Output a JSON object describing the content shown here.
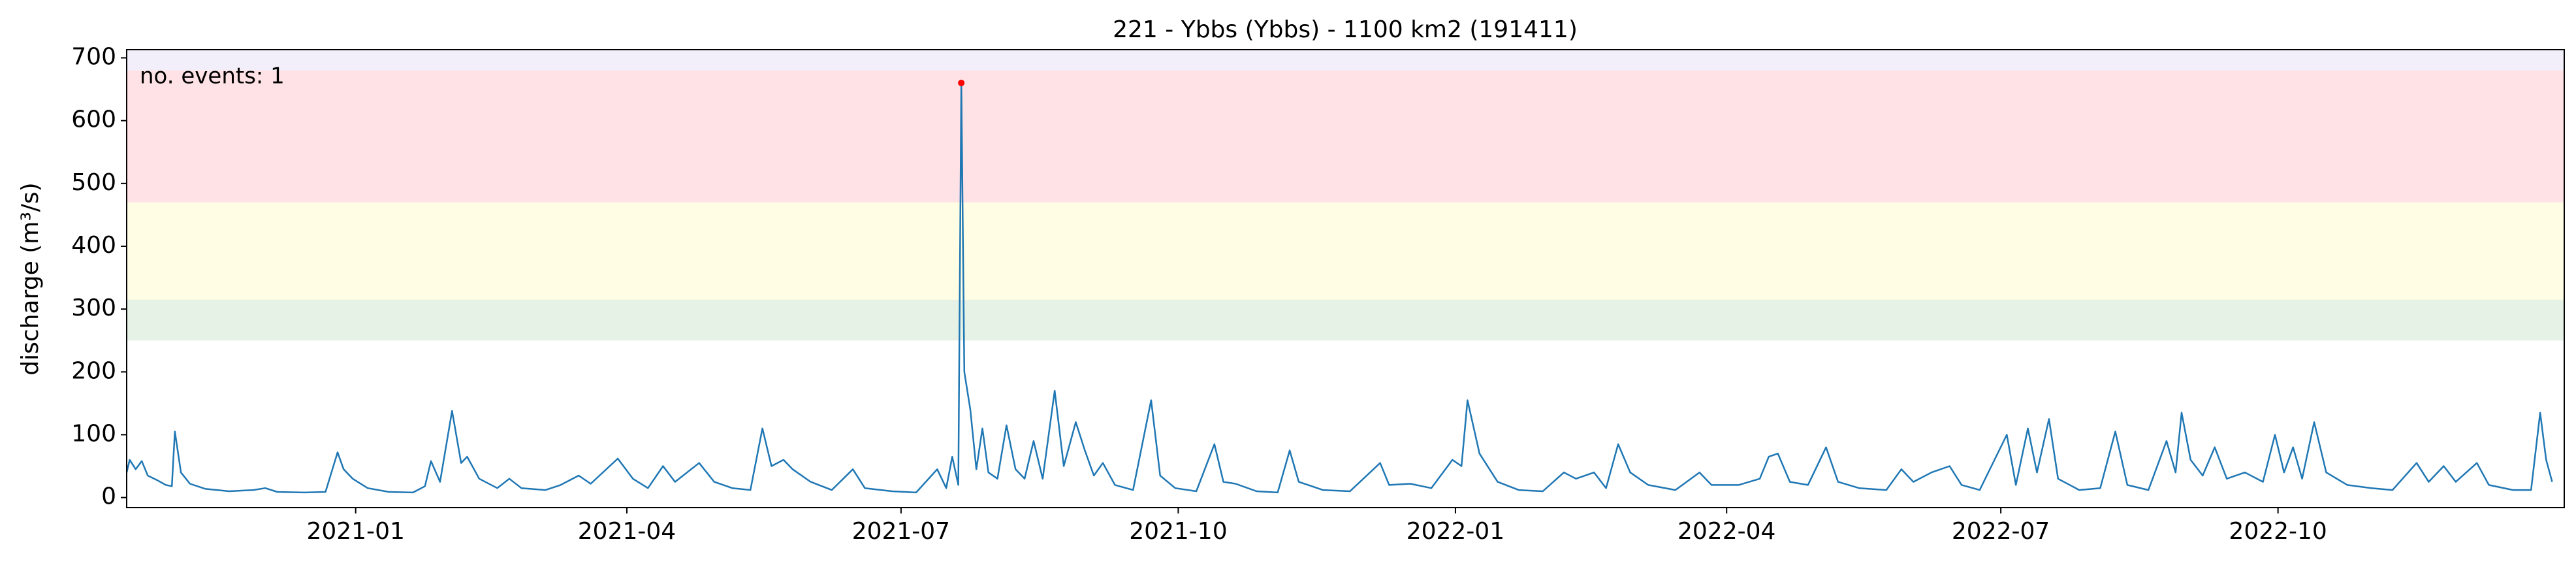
{
  "chart_data": {
    "type": "line",
    "title": "221 - Ybbs (Ybbs) - 1100 km2 (191411)",
    "y_label": "discharge (m³/s)",
    "annotation": "no. events: 1",
    "annotation_color": "#ff0000",
    "xlim": [
      "2020-10-17",
      "2023-01-04"
    ],
    "ylim": [
      -16,
      713
    ],
    "xticks": [
      {
        "value": "2021-01-01",
        "label": "2021-01"
      },
      {
        "value": "2021-04-01",
        "label": "2021-04"
      },
      {
        "value": "2021-07-01",
        "label": "2021-07"
      },
      {
        "value": "2021-10-01",
        "label": "2021-10"
      },
      {
        "value": "2022-01-01",
        "label": "2022-01"
      },
      {
        "value": "2022-04-01",
        "label": "2022-04"
      },
      {
        "value": "2022-07-01",
        "label": "2022-07"
      },
      {
        "value": "2022-10-01",
        "label": "2022-10"
      }
    ],
    "yticks": [
      0,
      100,
      200,
      300,
      400,
      500,
      600,
      700
    ],
    "bands": [
      {
        "from": 250,
        "to": 315,
        "color": "#e6f2e6"
      },
      {
        "from": 315,
        "to": 470,
        "color": "#fffde3"
      },
      {
        "from": 470,
        "to": 680,
        "color": "#ffe2e5"
      },
      {
        "from": 680,
        "to": 713,
        "color": "#f3effa"
      }
    ],
    "events": [
      {
        "x": "2021-07-21",
        "value": 660,
        "color": "#ff0000"
      }
    ],
    "series": [
      {
        "color": "#1f77b4",
        "x": [
          "2020-10-17",
          "2020-10-18",
          "2020-10-20",
          "2020-10-22",
          "2020-10-24",
          "2020-10-27",
          "2020-10-30",
          "2020-11-01",
          "2020-11-02",
          "2020-11-04",
          "2020-11-07",
          "2020-11-12",
          "2020-11-20",
          "2020-11-28",
          "2020-12-02",
          "2020-12-06",
          "2020-12-15",
          "2020-12-22",
          "2020-12-26",
          "2020-12-28",
          "2020-12-31",
          "2021-01-05",
          "2021-01-12",
          "2021-01-20",
          "2021-01-24",
          "2021-01-26",
          "2021-01-29",
          "2021-02-02",
          "2021-02-05",
          "2021-02-07",
          "2021-02-11",
          "2021-02-17",
          "2021-02-21",
          "2021-02-25",
          "2021-03-05",
          "2021-03-10",
          "2021-03-16",
          "2021-03-20",
          "2021-03-29",
          "2021-04-03",
          "2021-04-08",
          "2021-04-13",
          "2021-04-17",
          "2021-04-25",
          "2021-04-30",
          "2021-05-06",
          "2021-05-12",
          "2021-05-16",
          "2021-05-19",
          "2021-05-23",
          "2021-05-26",
          "2021-06-01",
          "2021-06-08",
          "2021-06-15",
          "2021-06-19",
          "2021-06-28",
          "2021-07-06",
          "2021-07-13",
          "2021-07-16",
          "2021-07-18",
          "2021-07-20",
          "2021-07-21",
          "2021-07-22",
          "2021-07-24",
          "2021-07-26",
          "2021-07-28",
          "2021-07-30",
          "2021-08-02",
          "2021-08-05",
          "2021-08-08",
          "2021-08-11",
          "2021-08-14",
          "2021-08-17",
          "2021-08-21",
          "2021-08-24",
          "2021-08-28",
          "2021-08-31",
          "2021-09-03",
          "2021-09-06",
          "2021-09-10",
          "2021-09-16",
          "2021-09-22",
          "2021-09-25",
          "2021-09-30",
          "2021-10-07",
          "2021-10-13",
          "2021-10-16",
          "2021-10-20",
          "2021-10-27",
          "2021-11-03",
          "2021-11-07",
          "2021-11-10",
          "2021-11-18",
          "2021-11-27",
          "2021-12-07",
          "2021-12-10",
          "2021-12-17",
          "2021-12-24",
          "2021-12-31",
          "2022-01-03",
          "2022-01-05",
          "2022-01-09",
          "2022-01-15",
          "2022-01-22",
          "2022-01-30",
          "2022-02-06",
          "2022-02-10",
          "2022-02-16",
          "2022-02-20",
          "2022-02-24",
          "2022-02-28",
          "2022-03-06",
          "2022-03-15",
          "2022-03-23",
          "2022-03-27",
          "2022-04-05",
          "2022-04-12",
          "2022-04-15",
          "2022-04-18",
          "2022-04-22",
          "2022-04-28",
          "2022-05-04",
          "2022-05-08",
          "2022-05-15",
          "2022-05-24",
          "2022-05-29",
          "2022-06-02",
          "2022-06-08",
          "2022-06-14",
          "2022-06-18",
          "2022-06-24",
          "2022-07-03",
          "2022-07-06",
          "2022-07-10",
          "2022-07-13",
          "2022-07-17",
          "2022-07-20",
          "2022-07-27",
          "2022-08-03",
          "2022-08-08",
          "2022-08-12",
          "2022-08-19",
          "2022-08-25",
          "2022-08-28",
          "2022-08-30",
          "2022-09-02",
          "2022-09-06",
          "2022-09-10",
          "2022-09-14",
          "2022-09-20",
          "2022-09-26",
          "2022-09-30",
          "2022-10-03",
          "2022-10-06",
          "2022-10-09",
          "2022-10-13",
          "2022-10-17",
          "2022-10-24",
          "2022-11-01",
          "2022-11-08",
          "2022-11-16",
          "2022-11-20",
          "2022-11-25",
          "2022-11-29",
          "2022-12-06",
          "2022-12-10",
          "2022-12-18",
          "2022-12-24",
          "2022-12-27",
          "2022-12-29",
          "2022-12-31"
        ],
        "values": [
          40,
          60,
          45,
          58,
          35,
          28,
          20,
          18,
          105,
          40,
          22,
          14,
          10,
          12,
          15,
          9,
          8,
          9,
          72,
          45,
          30,
          15,
          9,
          8,
          18,
          58,
          25,
          138,
          55,
          65,
          30,
          15,
          30,
          15,
          12,
          20,
          35,
          22,
          62,
          30,
          15,
          50,
          25,
          55,
          25,
          15,
          12,
          110,
          50,
          60,
          45,
          25,
          12,
          45,
          15,
          10,
          8,
          45,
          15,
          65,
          20,
          660,
          200,
          140,
          45,
          110,
          40,
          30,
          115,
          45,
          30,
          90,
          30,
          170,
          50,
          120,
          75,
          35,
          55,
          20,
          12,
          155,
          35,
          15,
          10,
          85,
          25,
          22,
          10,
          8,
          75,
          25,
          12,
          10,
          55,
          20,
          22,
          15,
          60,
          50,
          155,
          70,
          25,
          12,
          10,
          40,
          30,
          40,
          15,
          85,
          40,
          20,
          12,
          40,
          20,
          20,
          30,
          65,
          70,
          25,
          20,
          80,
          25,
          15,
          12,
          45,
          25,
          40,
          50,
          20,
          12,
          100,
          20,
          110,
          40,
          125,
          30,
          12,
          15,
          105,
          20,
          12,
          90,
          40,
          135,
          60,
          35,
          80,
          30,
          40,
          25,
          100,
          40,
          80,
          30,
          120,
          40,
          20,
          15,
          12,
          55,
          25,
          50,
          25,
          55,
          20,
          12,
          12,
          135,
          60,
          25
        ]
      }
    ]
  }
}
